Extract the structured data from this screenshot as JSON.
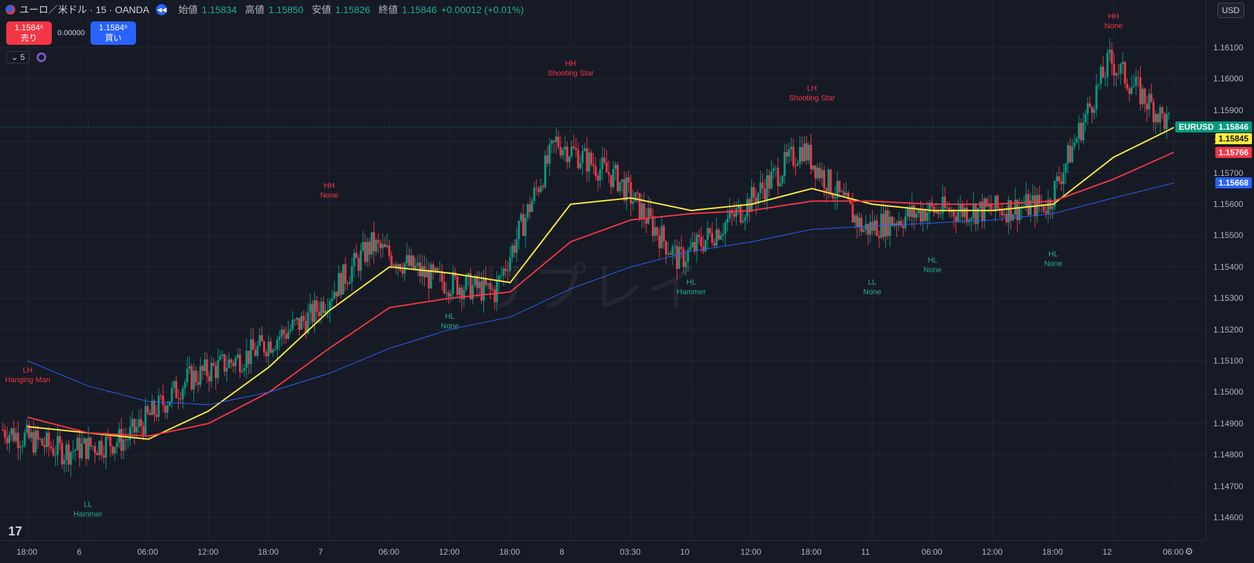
{
  "header": {
    "symbol_title": "ユーロ／米ドル · 15 · OANDA",
    "open_label": "始値",
    "open_value": "1.15834",
    "high_label": "高値",
    "high_value": "1.15850",
    "low_label": "安値",
    "low_value": "1.15826",
    "close_label": "終値",
    "close_value": "1.15846",
    "change": "+0.00012 (+0.01%)",
    "currency_button": "USD"
  },
  "trade": {
    "sell_price": "1.1584⁶",
    "sell_label": "売り",
    "spread": "0.00000",
    "buy_price": "1.1584⁶",
    "buy_label": "買い"
  },
  "interval_count": "5",
  "watermark": "リプレイ",
  "price_axis": {
    "ticks": [
      "1.16100",
      "1.16000",
      "1.15900",
      "1.15800",
      "1.15700",
      "1.15600",
      "1.15500",
      "1.15400",
      "1.15300",
      "1.15200",
      "1.15100",
      "1.15000",
      "1.14900",
      "1.14800",
      "1.14700",
      "1.14600"
    ],
    "symbol_tag": "EURUSD",
    "last_price": "1.15846",
    "ma_yellow": "1.15845",
    "ma_red": "1.15766",
    "ma_blue": "1.15668"
  },
  "time_axis": {
    "labels": [
      "18:00",
      "6",
      "06:00",
      "12:00",
      "18:00",
      "7",
      "06:00",
      "12:00",
      "18:00",
      "8",
      "03:30",
      "10",
      "12:00",
      "18:00",
      "11",
      "06:00",
      "12:00",
      "18:00",
      "12",
      "06:00"
    ]
  },
  "annotations": [
    {
      "line1": "LH",
      "line2": "Hanging Man",
      "kind": "high"
    },
    {
      "line1": "LL",
      "line2": "Hammer",
      "kind": "low"
    },
    {
      "line1": "HH",
      "line2": "None",
      "kind": "high"
    },
    {
      "line1": "HL",
      "line2": "None",
      "kind": "low"
    },
    {
      "line1": "HH",
      "line2": "Shooting Star",
      "kind": "high"
    },
    {
      "line1": "HL",
      "line2": "Hammer",
      "kind": "low"
    },
    {
      "line1": "LH",
      "line2": "Shooting Star",
      "kind": "high"
    },
    {
      "line1": "LL",
      "line2": "None",
      "kind": "low"
    },
    {
      "line1": "HL",
      "line2": "None",
      "kind": "low"
    },
    {
      "line1": "HL",
      "line2": "None",
      "kind": "low"
    },
    {
      "line1": "HH",
      "line2": "None",
      "kind": "high"
    }
  ],
  "colors": {
    "background": "#161a25",
    "up": "#089981",
    "down": "#f23645",
    "ma_yellow": "#ffeb3b",
    "ma_red": "#f23645",
    "ma_blue": "#2962ff",
    "label_high": "#f23645",
    "label_low": "#22ab94"
  },
  "chart_data": {
    "type": "line",
    "title": "ユーロ／米ドル · 15 · OANDA",
    "ylim": [
      1.1455,
      1.1625
    ],
    "x": [
      "18:00",
      "6",
      "06:00",
      "12:00",
      "18:00",
      "7",
      "06:00",
      "12:00",
      "18:00",
      "8",
      "03:30",
      "10",
      "12:00",
      "18:00",
      "11",
      "06:00",
      "12:00",
      "18:00",
      "12",
      "06:00"
    ],
    "series": [
      {
        "name": "close",
        "values": [
          1.1488,
          1.1481,
          1.1485,
          1.1504,
          1.1512,
          1.1524,
          1.1547,
          1.1536,
          1.1532,
          1.158,
          1.1568,
          1.1542,
          1.1558,
          1.1578,
          1.1552,
          1.1558,
          1.1558,
          1.156,
          1.1606,
          1.15846
        ]
      },
      {
        "name": "MA yellow",
        "values": [
          1.1489,
          1.1487,
          1.1485,
          1.1494,
          1.1508,
          1.1526,
          1.154,
          1.1538,
          1.1535,
          1.156,
          1.1562,
          1.1558,
          1.156,
          1.1565,
          1.156,
          1.1558,
          1.1558,
          1.156,
          1.1575,
          1.15845
        ]
      },
      {
        "name": "MA red",
        "values": [
          1.1492,
          1.1487,
          1.1486,
          1.149,
          1.15,
          1.1514,
          1.1527,
          1.153,
          1.1532,
          1.1548,
          1.1555,
          1.1557,
          1.1558,
          1.1561,
          1.1561,
          1.156,
          1.156,
          1.1561,
          1.1568,
          1.15766
        ]
      },
      {
        "name": "MA blue",
        "values": [
          1.151,
          1.1502,
          1.1497,
          1.1496,
          1.15,
          1.1506,
          1.1514,
          1.152,
          1.1524,
          1.1533,
          1.154,
          1.1545,
          1.1548,
          1.1552,
          1.1553,
          1.1554,
          1.1555,
          1.1557,
          1.1562,
          1.15668
        ]
      }
    ],
    "swing_points": [
      {
        "x": "18:00",
        "y": 1.1493,
        "label": "LH Hanging Man"
      },
      {
        "x": "6",
        "y": 1.147,
        "label": "LL Hammer"
      },
      {
        "x": "7",
        "y": 1.1552,
        "label": "HH None"
      },
      {
        "x": "12:00",
        "y": 1.153,
        "label": "HL None"
      },
      {
        "x": "8",
        "y": 1.1591,
        "label": "HH Shooting Star"
      },
      {
        "x": "10",
        "y": 1.1541,
        "label": "HL Hammer"
      },
      {
        "x": "18:00",
        "y": 1.1583,
        "label": "LH Shooting Star"
      },
      {
        "x": "11",
        "y": 1.1541,
        "label": "LL None"
      },
      {
        "x": "06:00",
        "y": 1.1548,
        "label": "HL None"
      },
      {
        "x": "18:00",
        "y": 1.155,
        "label": "HL None"
      },
      {
        "x": "12",
        "y": 1.1606,
        "label": "HH None"
      }
    ]
  }
}
